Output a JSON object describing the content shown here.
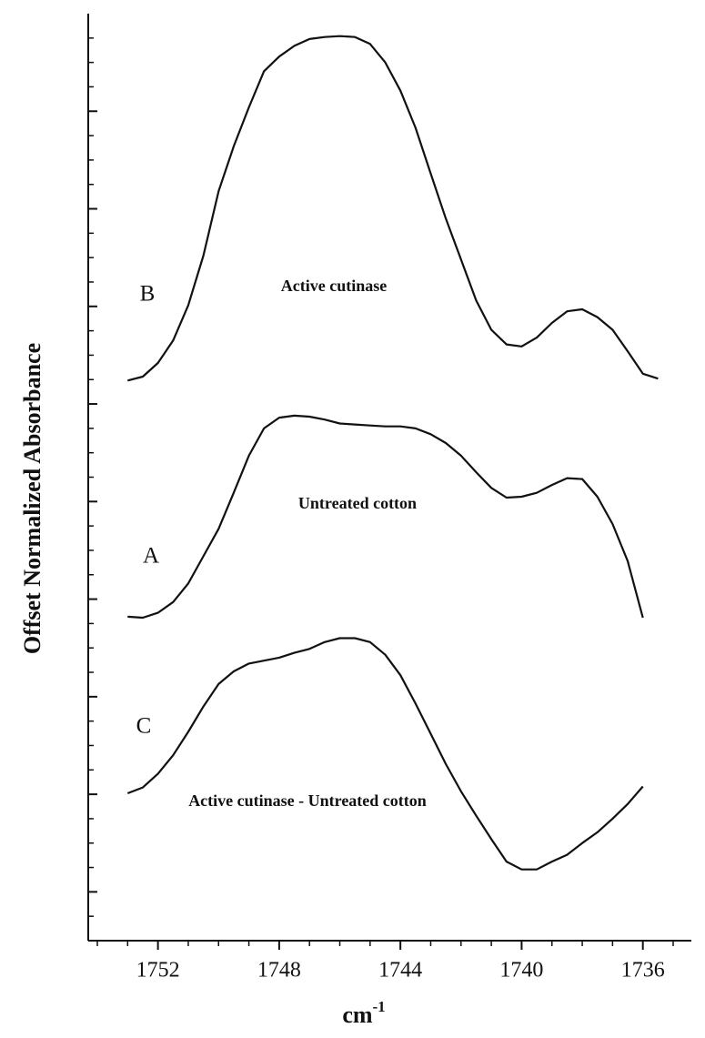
{
  "chart_data": {
    "type": "line",
    "y_label": "Offset Normalized Absorbance",
    "x_label": "cm",
    "x_label_superscript": "-1",
    "x": [
      1753,
      1752.5,
      1752,
      1751.5,
      1751,
      1750.5,
      1750,
      1749.5,
      1749,
      1748.5,
      1748,
      1747.5,
      1747,
      1746.5,
      1746,
      1745.5,
      1745,
      1744.5,
      1744,
      1743.5,
      1743,
      1742.5,
      1742,
      1741.5,
      1741,
      1740.5,
      1740,
      1739.5,
      1739,
      1738.5,
      1738,
      1737.5,
      1737,
      1736.5,
      1736,
      1735.5
    ],
    "series": [
      {
        "name": "B",
        "description": "Active cutinase",
        "color": "#111111",
        "values": [
          5.24,
          5.28,
          5.42,
          5.65,
          6.01,
          6.52,
          7.18,
          7.64,
          8.04,
          8.41,
          8.56,
          8.67,
          8.74,
          8.76,
          8.77,
          8.76,
          8.69,
          8.5,
          8.21,
          7.83,
          7.36,
          6.9,
          6.48,
          6.06,
          5.76,
          5.61,
          5.59,
          5.68,
          5.83,
          5.95,
          5.97,
          5.89,
          5.76,
          5.54,
          5.31,
          5.26
        ]
      },
      {
        "name": "A",
        "description": "Untreated cotton",
        "color": "#111111",
        "values": [
          2.82,
          2.81,
          2.86,
          2.97,
          3.16,
          3.44,
          3.72,
          4.09,
          4.47,
          4.75,
          4.86,
          4.88,
          4.87,
          4.84,
          4.8,
          4.79,
          4.78,
          4.77,
          4.77,
          4.75,
          4.69,
          4.6,
          4.47,
          4.3,
          4.14,
          4.04,
          4.05,
          4.09,
          4.17,
          4.24,
          4.23,
          4.05,
          3.77,
          3.39,
          2.81,
          null
        ]
      },
      {
        "name": "C",
        "description": "Active cutinase - Untreated cotton",
        "color": "#111111",
        "values": [
          1.01,
          1.07,
          1.21,
          1.4,
          1.64,
          1.9,
          2.13,
          2.26,
          2.34,
          2.37,
          2.4,
          2.45,
          2.49,
          2.56,
          2.6,
          2.6,
          2.56,
          2.43,
          2.22,
          1.93,
          1.62,
          1.31,
          1.03,
          0.78,
          0.54,
          0.31,
          0.23,
          0.23,
          0.31,
          0.38,
          0.5,
          0.61,
          0.75,
          0.9,
          1.08,
          null
        ]
      }
    ],
    "xlim": [
      1754.3,
      1734.4
    ],
    "xticks": [
      1752,
      1748,
      1744,
      1740,
      1736
    ],
    "ylim": [
      -0.5,
      9
    ],
    "yticks": [
      0,
      1,
      2,
      3,
      4,
      5,
      6,
      7,
      8
    ]
  }
}
